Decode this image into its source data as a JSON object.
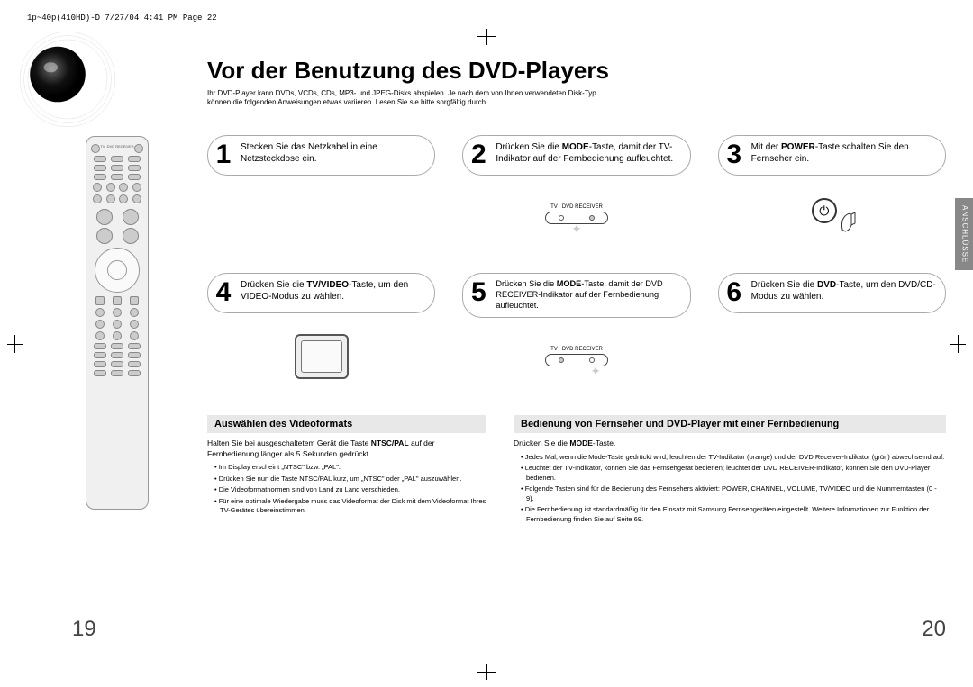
{
  "meta_header": "1p~40p(410HD)-D  7/27/04 4:41 PM  Page 22",
  "title": "Vor der Benutzung des DVD-Players",
  "intro": "Ihr DVD-Player kann DVDs, VCDs, CDs, MP3- und JPEG-Disks abspielen. Je nach dem von Ihnen verwendeten Disk-Typ können die folgenden Anweisungen etwas variieren. Lesen Sie sie bitte sorgfältig durch.",
  "side_tab": "ANSCHLÜSSE",
  "steps": [
    {
      "num": "1",
      "text": "Stecken Sie das Netzkabel in eine Netzsteckdose ein."
    },
    {
      "num": "2",
      "text_html": "Drücken Sie die <b>MODE</b>-Taste, damit der TV-Indikator auf der Fernbedienung aufleuchtet."
    },
    {
      "num": "3",
      "text_html": "Mit der <b>POWER</b>-Taste schalten Sie den Fernseher ein."
    },
    {
      "num": "4",
      "text_html": "Drücken Sie die <b>TV/VIDEO</b>-Taste, um den VIDEO-Modus zu wählen."
    },
    {
      "num": "5",
      "text_html": "Drücken Sie die <b>MODE</b>-Taste, damit der DVD RECEIVER-Indikator auf der Fernbedienung aufleuchtet."
    },
    {
      "num": "6",
      "text_html": "Drücken Sie die <b>DVD</b>-Taste, um den DVD/CD-Modus zu wählen."
    }
  ],
  "mode_labels": {
    "left": "TV",
    "right": "DVD RECEIVER"
  },
  "section_left": {
    "heading": "Auswählen des Videoformats",
    "lead_html": "Halten Sie bei ausgeschaltetem Gerät die Taste <b>NTSC/PAL</b> auf der Fernbedienung länger als 5 Sekunden gedrückt.",
    "bullets": [
      "Im Display erscheint „NTSC\" bzw. „PAL\".",
      "Drücken Sie nun die Taste NTSC/PAL kurz, um „NTSC\" oder „PAL\" auszuwählen.",
      "Die Videoformatnormen sind von Land zu Land verschieden.",
      "Für eine optimale Wiedergabe muss das Videoformat der Disk mit dem Videoformat Ihres TV-Gerätes übereinstimmen."
    ]
  },
  "section_right": {
    "heading": "Bedienung von Fernseher und DVD-Player mit einer Fernbedienung",
    "lead_html": "Drücken Sie die <b>MODE</b>-Taste.",
    "bullets": [
      "Jedes Mal, wenn die Mode-Taste gedrückt wird, leuchten der TV-Indikator (orange) und der DVD Receiver-Indikator (grün) abwechselnd auf.",
      "Leuchtet der TV-Indikator, können Sie das Fernsehgerät bedienen; leuchtet der DVD RECEIVER-Indikator, können Sie den DVD-Player bedienen.",
      "Folgende Tasten sind für die Bedienung des Fernsehers aktiviert: POWER, CHANNEL, VOLUME, TV/VIDEO und die Nummerntasten (0 - 9).",
      "Die Fernbedienung ist standardmäßig für den Einsatz mit Samsung Fernsehgeräten eingestellt. Weitere Informationen zur Funktion der Fernbedienung finden Sie auf Seite 69."
    ]
  },
  "page_left": "19",
  "page_right": "20",
  "colors": {
    "side_tab_bg": "#888888",
    "sub_head_bg": "#e8e8e8"
  }
}
